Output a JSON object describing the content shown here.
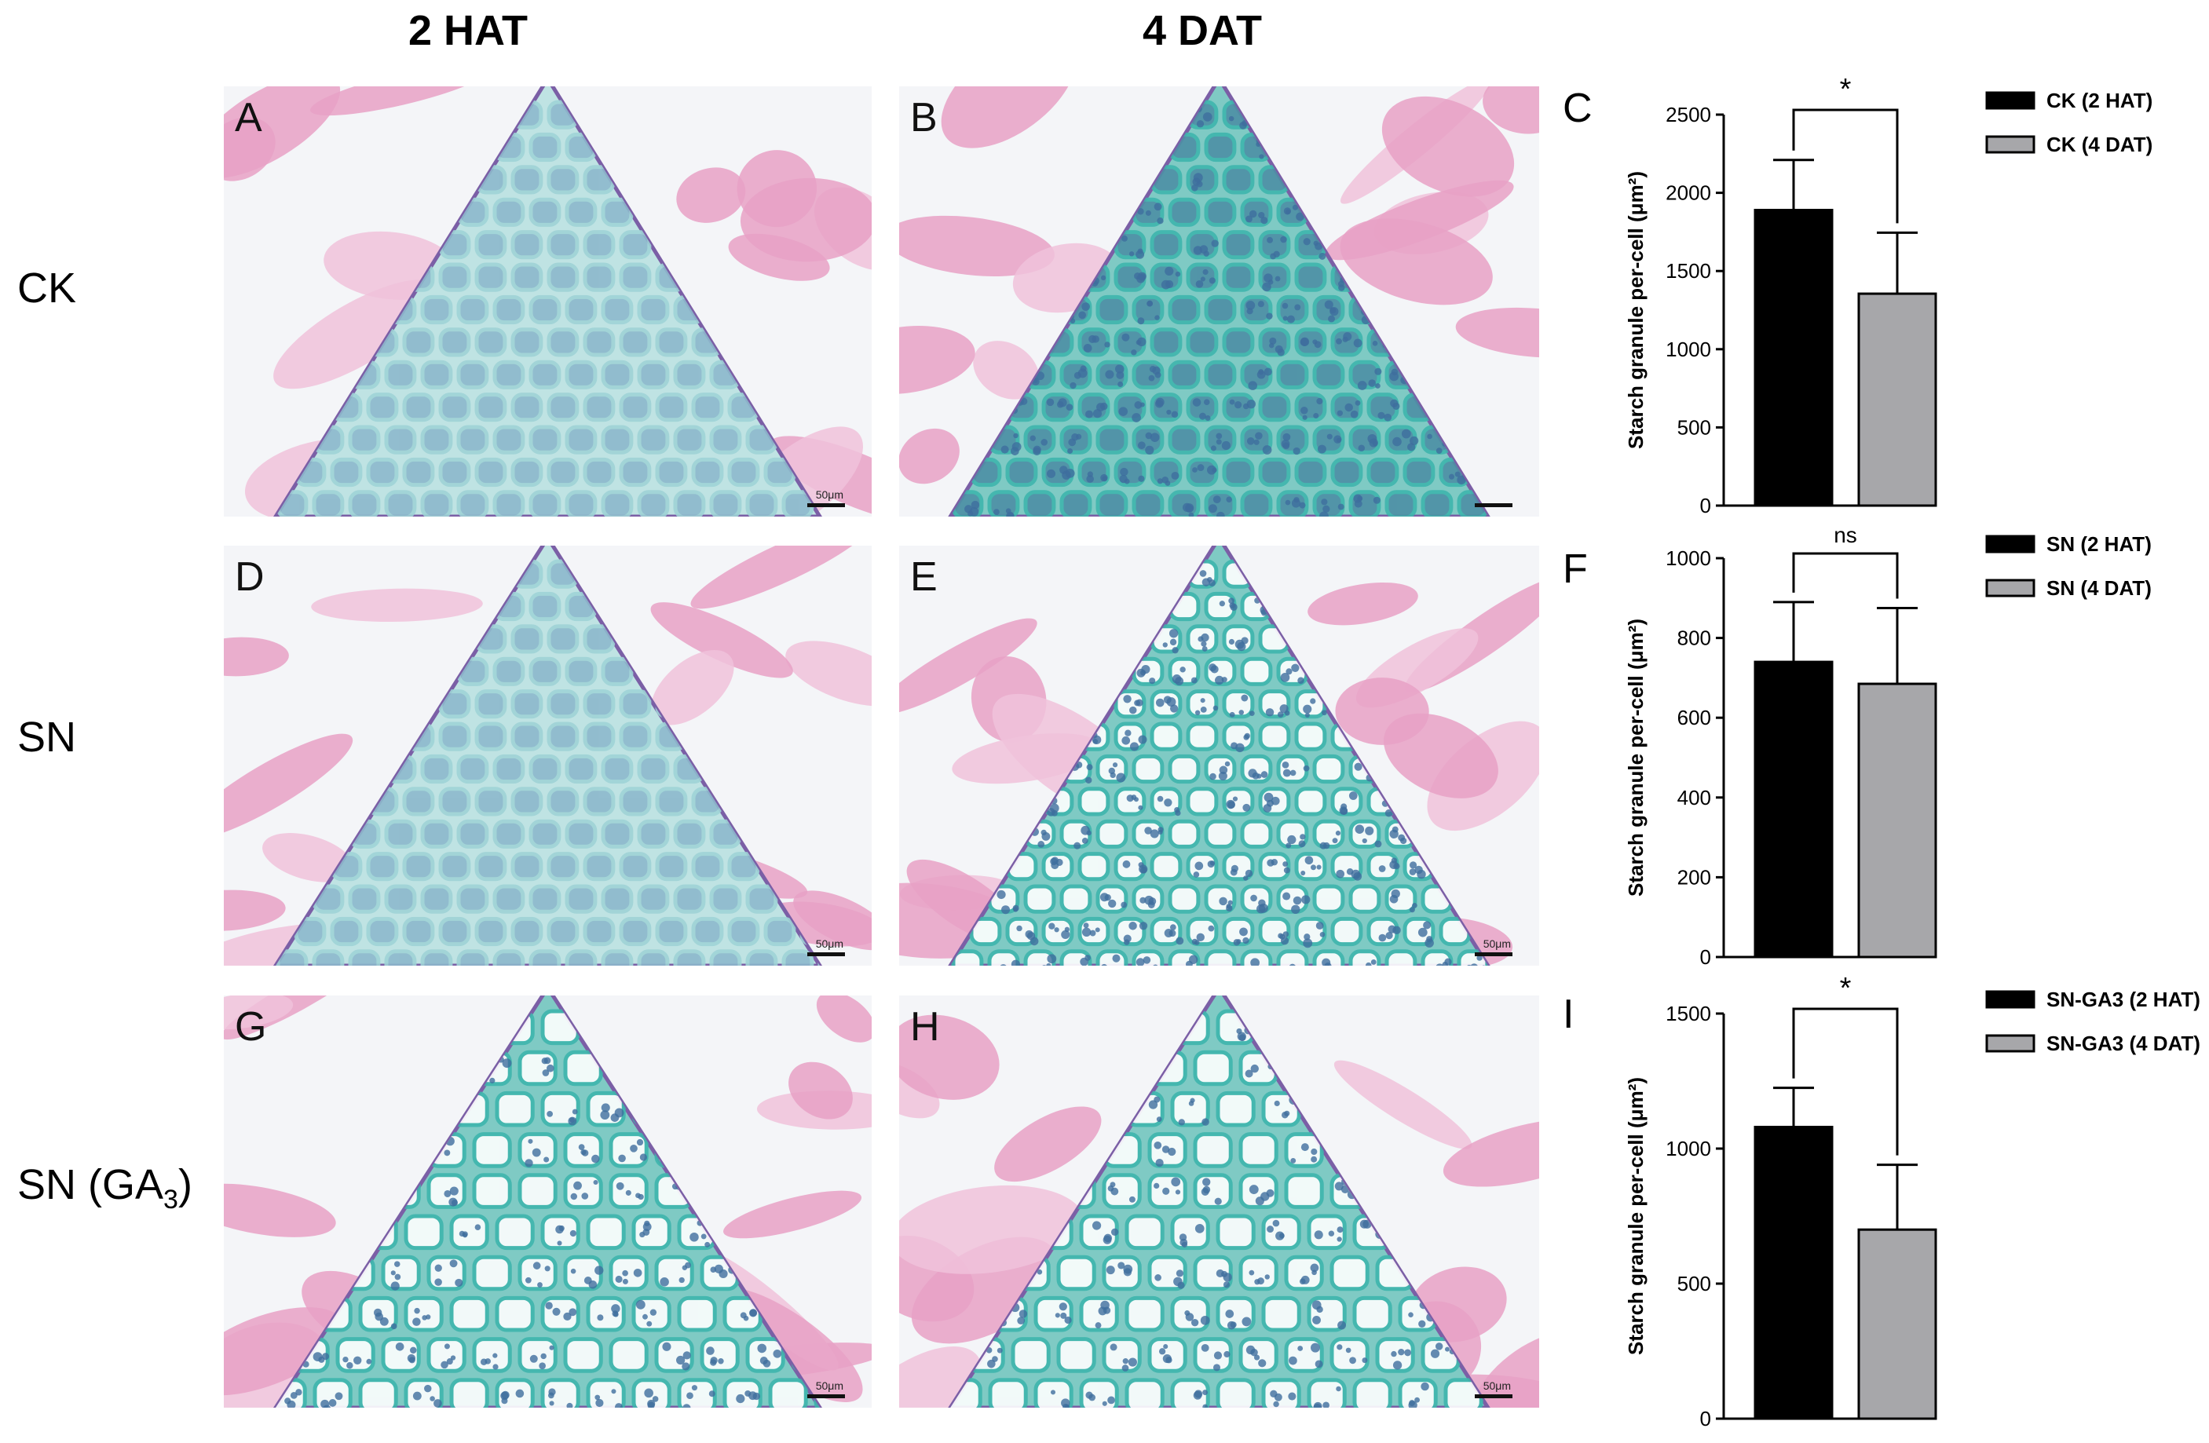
{
  "column_headers": [
    "2 HAT",
    "4 DAT"
  ],
  "row_headers": [
    {
      "main": "CK",
      "sub": "",
      "tail": ""
    },
    {
      "main": "SN",
      "sub": "",
      "tail": ""
    },
    {
      "main": "SN (GA",
      "sub": "3",
      "tail": ")"
    }
  ],
  "panels": [
    {
      "letter": "A",
      "scale": "50μm",
      "stain": "pink-sparse"
    },
    {
      "letter": "B",
      "scale": "",
      "stain": "teal-dense"
    },
    {
      "letter": "D",
      "scale": "50μm",
      "stain": "pink-sparse"
    },
    {
      "letter": "E",
      "scale": "50μm",
      "stain": "teal-medium"
    },
    {
      "letter": "G",
      "scale": "50μm",
      "stain": "teal-open"
    },
    {
      "letter": "H",
      "scale": "50μm",
      "stain": "teal-open"
    }
  ],
  "colors": {
    "bar1": "#000000",
    "bar2": "#a7a7aa",
    "pink": "#e7a6c8",
    "teal": "#5cbcb6"
  },
  "chart_data": [
    {
      "type": "bar",
      "panel": "C",
      "categories": [
        "CK (2 HAT)",
        "CK (4 DAT)"
      ],
      "values": [
        1890,
        1355
      ],
      "errors": [
        320,
        390
      ],
      "ylabel": "Starch granule per-cell (μm²)",
      "ylim": [
        0,
        2500
      ],
      "yticks": [
        0,
        500,
        1000,
        1500,
        2000,
        2500
      ],
      "significance": "*",
      "legend": [
        "CK (2 HAT)",
        "CK (4 DAT)"
      ]
    },
    {
      "type": "bar",
      "panel": "F",
      "categories": [
        "SN (2 HAT)",
        "SN (4 DAT)"
      ],
      "values": [
        740,
        685
      ],
      "errors": [
        150,
        190
      ],
      "ylabel": "Starch granule per-cell (μm²)",
      "ylim": [
        0,
        1000
      ],
      "yticks": [
        0,
        200,
        400,
        600,
        800,
        1000
      ],
      "significance": "ns",
      "legend": [
        "SN (2 HAT)",
        "SN (4 DAT)"
      ]
    },
    {
      "type": "bar",
      "panel": "I",
      "categories": [
        "SN-GA3 (2 HAT)",
        "SN-GA3 (4 DAT)"
      ],
      "values": [
        1080,
        700
      ],
      "errors": [
        145,
        240
      ],
      "ylabel": "Starch granule per-cell (μm²)",
      "ylim": [
        0,
        1500
      ],
      "yticks": [
        0,
        500,
        1000,
        1500
      ],
      "significance": "*",
      "legend": [
        "SN-GA3 (2 HAT)",
        "SN-GA3 (4 DAT)"
      ]
    }
  ]
}
